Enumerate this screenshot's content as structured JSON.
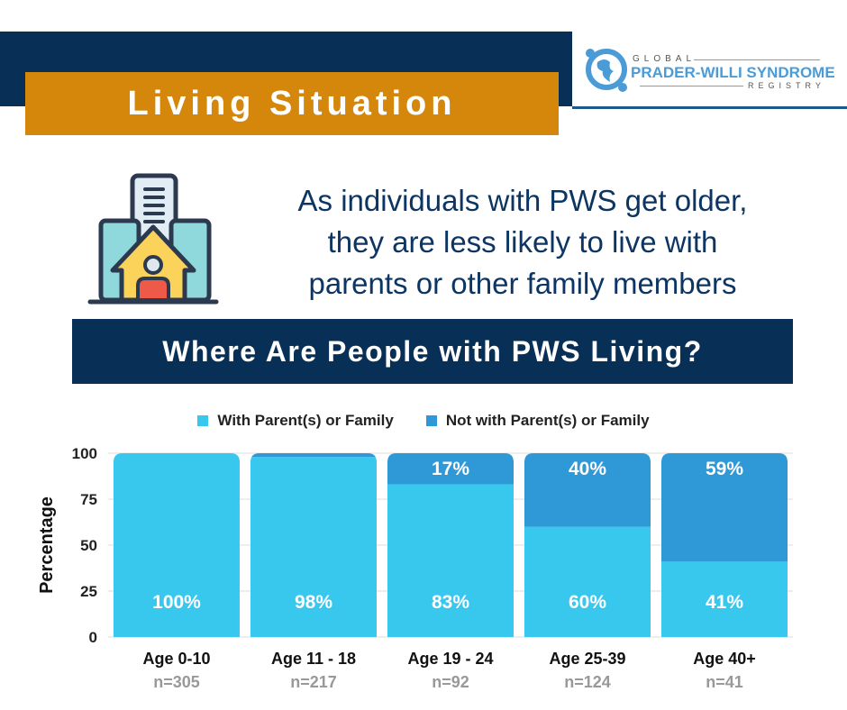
{
  "header": {
    "title": "Living Situation",
    "logo": "GLOBAL PRADER-WILLI SYNDROME REGISTRY",
    "logo_parts": [
      "GLOBAL",
      "PRADER-WILLI SYNDROME",
      "REGISTRY"
    ]
  },
  "lead_lines": [
    "As individuals with PWS get older,",
    "they are less likely to live with",
    "parents or other family members"
  ],
  "section_title": "Where Are People with PWS Living?",
  "chart_data": {
    "type": "bar",
    "stacked": true,
    "title": "",
    "xlabel": "",
    "ylabel": "Percentage",
    "ylim": [
      0,
      100
    ],
    "yticks": [
      0,
      25,
      50,
      75,
      100
    ],
    "grid": true,
    "legend": "top",
    "categories": [
      "Age 0-10",
      "Age 11 - 18",
      "Age 19 - 24",
      "Age 25-39",
      "Age 40+"
    ],
    "sample_sizes": [
      "n=305",
      "n=217",
      "n=92",
      "n=124",
      "n=41"
    ],
    "series": [
      {
        "name": "With Parent(s) or Family",
        "values": [
          100,
          98,
          83,
          60,
          41
        ],
        "labels": [
          "100%",
          "98%",
          "83%",
          "60%",
          "41%"
        ],
        "color": "#38c8ee"
      },
      {
        "name": "Not with Parent(s) or Family",
        "values": [
          0,
          2,
          17,
          40,
          59
        ],
        "labels": [
          "",
          "",
          "17%",
          "40%",
          "59%"
        ],
        "color": "#2f98d6"
      }
    ]
  }
}
